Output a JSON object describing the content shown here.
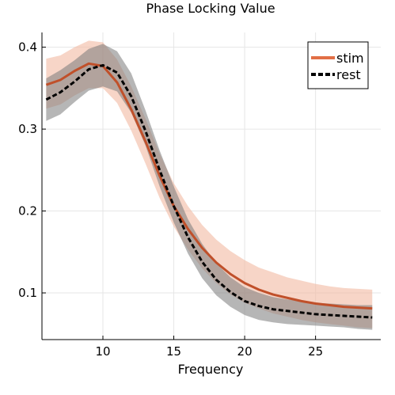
{
  "chart_data": {
    "type": "line",
    "title": "Phase Locking Value",
    "xlabel": "Frequency",
    "ylabel": "",
    "xlim": [
      5.7,
      29.6
    ],
    "ylim": [
      0.043,
      0.418
    ],
    "xticks": [
      10,
      15,
      20,
      25
    ],
    "yticks": [
      0.1,
      0.2,
      0.3,
      0.4
    ],
    "xtick_labels": [
      "10",
      "15",
      "20",
      "25"
    ],
    "ytick_labels": [
      "0.1",
      "0.2",
      "0.3",
      "0.4"
    ],
    "grid": true,
    "legend_position": "top-right",
    "x": [
      6,
      7,
      8,
      9,
      10,
      11,
      12,
      13,
      14,
      15,
      16,
      17,
      18,
      19,
      20,
      21,
      22,
      23,
      24,
      25,
      26,
      27,
      28,
      29
    ],
    "series": [
      {
        "name": "stim",
        "color": "#e26f46",
        "line_color": "#c0502a",
        "band_color": "#f2b9a2",
        "line_style": "solid",
        "values": [
          0.354,
          0.36,
          0.371,
          0.38,
          0.377,
          0.357,
          0.324,
          0.285,
          0.243,
          0.206,
          0.178,
          0.155,
          0.137,
          0.123,
          0.112,
          0.104,
          0.098,
          0.094,
          0.09,
          0.087,
          0.085,
          0.083,
          0.082,
          0.081
        ],
        "lower": [
          0.325,
          0.33,
          0.341,
          0.35,
          0.35,
          0.332,
          0.298,
          0.258,
          0.216,
          0.181,
          0.153,
          0.13,
          0.112,
          0.098,
          0.088,
          0.081,
          0.075,
          0.071,
          0.067,
          0.064,
          0.062,
          0.06,
          0.058,
          0.057
        ],
        "upper": [
          0.386,
          0.39,
          0.4,
          0.408,
          0.406,
          0.385,
          0.352,
          0.313,
          0.27,
          0.234,
          0.206,
          0.183,
          0.165,
          0.151,
          0.14,
          0.131,
          0.125,
          0.119,
          0.115,
          0.111,
          0.108,
          0.106,
          0.105,
          0.104
        ]
      },
      {
        "name": "rest",
        "color": "#000000",
        "line_color": "#000000",
        "band_color": "#7a7a7a",
        "line_style": "dashed",
        "values": [
          0.336,
          0.345,
          0.358,
          0.373,
          0.378,
          0.369,
          0.34,
          0.298,
          0.25,
          0.206,
          0.168,
          0.138,
          0.116,
          0.101,
          0.09,
          0.084,
          0.08,
          0.078,
          0.076,
          0.074,
          0.073,
          0.072,
          0.071,
          0.07
        ],
        "lower": [
          0.31,
          0.318,
          0.333,
          0.347,
          0.352,
          0.346,
          0.32,
          0.28,
          0.23,
          0.186,
          0.148,
          0.118,
          0.097,
          0.083,
          0.073,
          0.067,
          0.064,
          0.062,
          0.061,
          0.06,
          0.059,
          0.058,
          0.056,
          0.055
        ],
        "upper": [
          0.362,
          0.372,
          0.384,
          0.398,
          0.404,
          0.395,
          0.368,
          0.323,
          0.274,
          0.23,
          0.19,
          0.16,
          0.136,
          0.119,
          0.107,
          0.1,
          0.095,
          0.092,
          0.09,
          0.088,
          0.087,
          0.086,
          0.085,
          0.085
        ]
      }
    ]
  }
}
